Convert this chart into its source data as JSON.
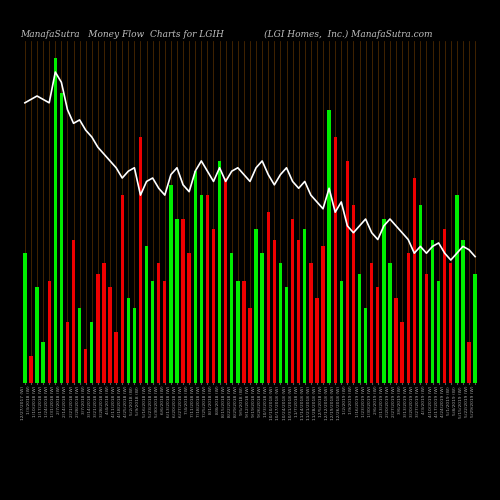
{
  "title": "ManafaSutra   Money Flow  Charts for LGIH              (LGI Homes,  Inc.) ManafaSutra.com",
  "background_color": "#000000",
  "bar_color_positive": "#00ee00",
  "bar_color_negative": "#ee0000",
  "grid_color": "#5a3000",
  "line_color": "#ffffff",
  "title_color": "#c0c0c0",
  "title_fontsize": 6.5,
  "bar_colors": [
    "G",
    "R",
    "G",
    "G",
    "R",
    "G",
    "G",
    "R",
    "R",
    "G",
    "R",
    "G",
    "R",
    "R",
    "R",
    "R",
    "R",
    "G",
    "G",
    "R",
    "G",
    "G",
    "R",
    "R",
    "G",
    "G",
    "R",
    "R",
    "G",
    "G",
    "R",
    "R",
    "G",
    "R",
    "G",
    "G",
    "R",
    "R",
    "G",
    "G",
    "R",
    "R",
    "G",
    "G",
    "R",
    "R",
    "G",
    "R",
    "R",
    "R",
    "G",
    "R",
    "G",
    "R",
    "R",
    "G",
    "G",
    "R",
    "R",
    "G",
    "G",
    "R",
    "R",
    "R",
    "R",
    "G",
    "R",
    "G",
    "G",
    "R",
    "R",
    "G",
    "G",
    "R",
    "G"
  ],
  "bar_heights": [
    0.38,
    0.08,
    0.28,
    0.12,
    0.3,
    0.95,
    0.85,
    0.18,
    0.42,
    0.22,
    0.1,
    0.18,
    0.32,
    0.35,
    0.28,
    0.15,
    0.55,
    0.25,
    0.22,
    0.72,
    0.4,
    0.3,
    0.35,
    0.3,
    0.58,
    0.48,
    0.48,
    0.38,
    0.62,
    0.55,
    0.55,
    0.45,
    0.65,
    0.6,
    0.38,
    0.3,
    0.3,
    0.22,
    0.45,
    0.38,
    0.5,
    0.42,
    0.35,
    0.28,
    0.48,
    0.42,
    0.45,
    0.35,
    0.25,
    0.4,
    0.8,
    0.72,
    0.3,
    0.65,
    0.52,
    0.32,
    0.22,
    0.35,
    0.28,
    0.48,
    0.35,
    0.25,
    0.18,
    0.38,
    0.6,
    0.52,
    0.32,
    0.42,
    0.3,
    0.45,
    0.35,
    0.55,
    0.42,
    0.12,
    0.32
  ],
  "line_values": [
    0.82,
    0.83,
    0.84,
    0.83,
    0.82,
    0.91,
    0.88,
    0.8,
    0.76,
    0.77,
    0.74,
    0.72,
    0.69,
    0.67,
    0.65,
    0.63,
    0.6,
    0.62,
    0.63,
    0.55,
    0.59,
    0.6,
    0.57,
    0.55,
    0.61,
    0.63,
    0.58,
    0.56,
    0.62,
    0.65,
    0.62,
    0.59,
    0.63,
    0.59,
    0.62,
    0.63,
    0.61,
    0.59,
    0.63,
    0.65,
    0.61,
    0.58,
    0.61,
    0.63,
    0.59,
    0.57,
    0.59,
    0.55,
    0.53,
    0.51,
    0.57,
    0.5,
    0.53,
    0.46,
    0.44,
    0.46,
    0.48,
    0.44,
    0.42,
    0.46,
    0.48,
    0.46,
    0.44,
    0.42,
    0.38,
    0.4,
    0.38,
    0.4,
    0.41,
    0.38,
    0.36,
    0.38,
    0.4,
    0.39,
    0.37
  ],
  "tick_labels": [
    "12/27/2017 (W)",
    "1/3/2018 (W)",
    "1/10/2018 (W)",
    "1/17/2018 (W)",
    "1/24/2018 (W)",
    "1/31/2018 (W)",
    "2/7/2018 (W)",
    "2/14/2018 (W)",
    "2/21/2018 (W)",
    "2/28/2018 (W)",
    "3/7/2018 (W)",
    "3/14/2018 (W)",
    "3/21/2018 (W)",
    "3/28/2018 (W)",
    "4/4/2018 (W)",
    "4/11/2018 (W)",
    "4/18/2018 (W)",
    "4/25/2018 (W)",
    "5/2/2018 (W)",
    "5/9/2018 (W)",
    "5/16/2018 (W)",
    "5/23/2018 (W)",
    "5/30/2018 (W)",
    "6/6/2018 (W)",
    "6/13/2018 (W)",
    "6/20/2018 (W)",
    "6/27/2018 (W)",
    "7/4/2018 (W)",
    "7/11/2018 (W)",
    "7/18/2018 (W)",
    "7/25/2018 (W)",
    "8/1/2018 (W)",
    "8/8/2018 (W)",
    "8/15/2018 (W)",
    "8/22/2018 (W)",
    "8/29/2018 (W)",
    "9/5/2018 (W)",
    "9/12/2018 (W)",
    "9/19/2018 (W)",
    "9/26/2018 (W)",
    "10/3/2018 (W)",
    "10/10/2018 (W)",
    "10/17/2018 (W)",
    "10/24/2018 (W)",
    "10/31/2018 (W)",
    "11/7/2018 (W)",
    "11/14/2018 (W)",
    "11/21/2018 (W)",
    "11/28/2018 (W)",
    "12/5/2018 (W)",
    "12/12/2018 (W)",
    "12/19/2018 (W)",
    "12/26/2018 (W)",
    "1/2/2019 (W)",
    "1/9/2019 (W)",
    "1/16/2019 (W)",
    "1/23/2019 (W)",
    "1/30/2019 (W)",
    "2/6/2019 (W)",
    "2/13/2019 (W)",
    "2/20/2019 (W)",
    "2/27/2019 (W)",
    "3/6/2019 (W)",
    "3/13/2019 (W)",
    "3/20/2019 (W)",
    "3/27/2019 (W)",
    "4/3/2019 (W)",
    "4/10/2019 (W)",
    "4/17/2019 (W)",
    "4/24/2019 (W)",
    "5/1/2019 (W)",
    "5/8/2019 (W)",
    "5/15/2019 (W)",
    "5/22/2019 (W)",
    "5/29/2019 (W)"
  ],
  "ylim": [
    0.0,
    1.0
  ],
  "line_ylim": [
    0.0,
    1.0
  ]
}
